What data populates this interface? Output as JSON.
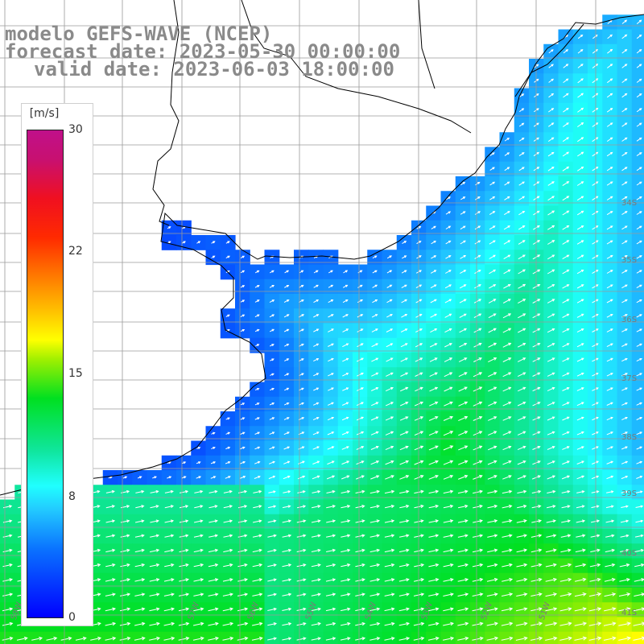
{
  "header": {
    "line1": "modelo GEFS-WAVE (NCEP)",
    "line2": "forecast date: 2023-05-30 00:00:00",
    "line3": "valid date: 2023-06-03 18:00:00"
  },
  "colorbar": {
    "unit": "[m/s]",
    "ticks": [
      "30",
      "22",
      "15",
      "8",
      "0"
    ],
    "tick_values": [
      30,
      22,
      15,
      8,
      0
    ],
    "range": [
      0,
      30
    ],
    "stops": [
      "#0000ff",
      "#0a72ff",
      "#22c8ff",
      "#20ffff",
      "#10e6a0",
      "#00e020",
      "#a0f000",
      "#ffff00",
      "#ffc000",
      "#ff7a00",
      "#ff2a00",
      "#f01020",
      "#c0108a"
    ]
  },
  "latitude_labels": [
    "34S",
    "35S",
    "36S",
    "37S",
    "38S",
    "39S",
    "40S",
    "41S"
  ],
  "longitude_labels": [
    "59W",
    "58W",
    "57W",
    "56W",
    "55W",
    "54W",
    "53W",
    "52W",
    "51W"
  ],
  "map": {
    "field": "wind speed",
    "arrow_color": "#ffffff",
    "land_color": "#ffffff",
    "coast_color": "#000000",
    "grid_color": "#9a9a9a"
  }
}
